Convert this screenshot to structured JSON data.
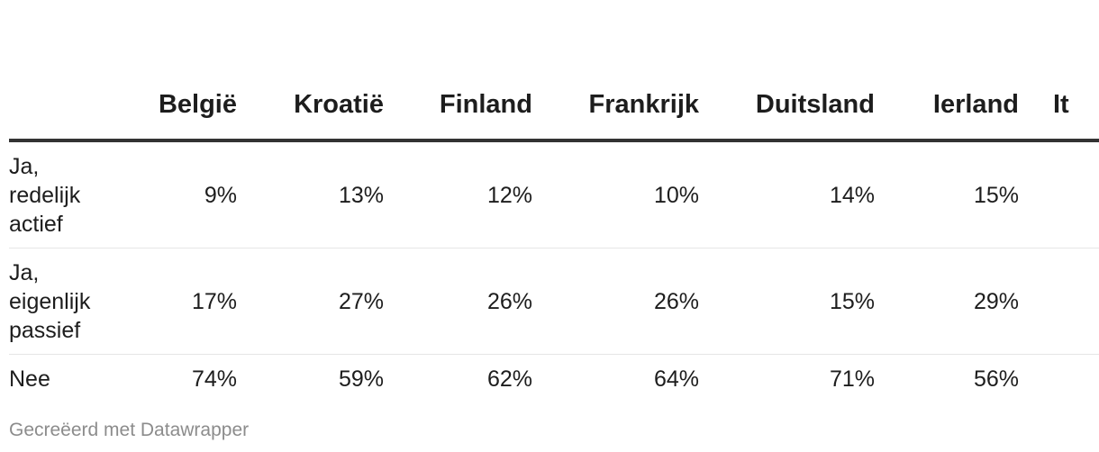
{
  "chart_data": {
    "type": "table",
    "columns": [
      "België",
      "Kroatië",
      "Finland",
      "Frankrijk",
      "Duitsland",
      "Ierland",
      "It"
    ],
    "rows": [
      {
        "label": "Ja, redelijk actief",
        "values": [
          "9%",
          "13%",
          "12%",
          "10%",
          "14%",
          "15%",
          ""
        ]
      },
      {
        "label": "Ja, eigenlijk passief",
        "values": [
          "17%",
          "27%",
          "26%",
          "26%",
          "15%",
          "29%",
          ""
        ]
      },
      {
        "label": "Nee",
        "values": [
          "74%",
          "59%",
          "62%",
          "64%",
          "71%",
          "56%",
          ""
        ]
      }
    ]
  },
  "footer": "Gecreëerd met Datawrapper"
}
